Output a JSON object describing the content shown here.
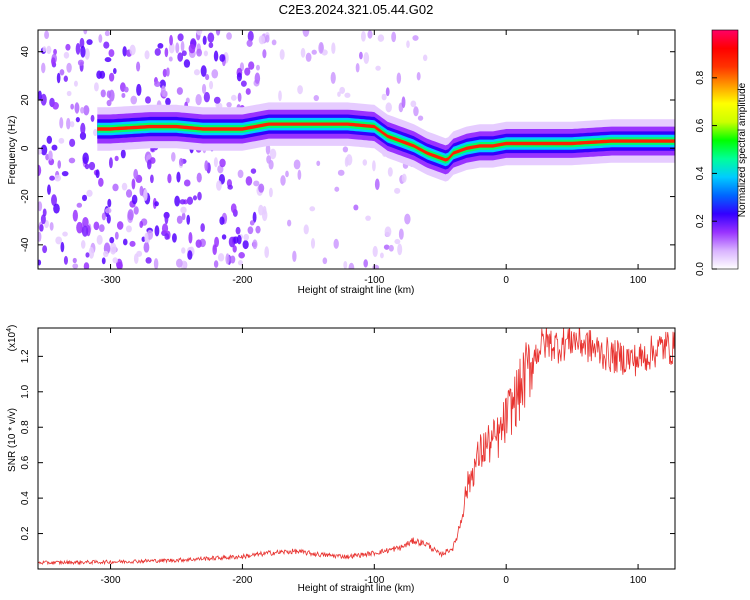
{
  "title": "C2E3.2024.321.05.44.G02",
  "colors": {
    "line": "#e8322f",
    "axis": "#000000",
    "background": "#ffffff",
    "colorbar_stops": [
      "#ffffff",
      "#d9b3ff",
      "#9933ff",
      "#3300ff",
      "#0066ff",
      "#00ccff",
      "#00ff99",
      "#00ff00",
      "#ccff00",
      "#ffff00",
      "#ff9900",
      "#ff3300",
      "#ff0000",
      "#ff0066"
    ]
  },
  "chart_data": [
    {
      "type": "heatmap",
      "xlabel": "Height of straight line (km)",
      "ylabel": "Frequency (Hz)",
      "xlim": [
        -355,
        128
      ],
      "ylim": [
        -50,
        49
      ],
      "x_ticks": [
        -300,
        -200,
        -100,
        0,
        100
      ],
      "y_ticks": [
        -40,
        -20,
        0,
        20,
        40
      ],
      "ridge": {
        "x": [
          -300,
          -270,
          -250,
          -230,
          -200,
          -180,
          -150,
          -120,
          -100,
          -90,
          -80,
          -70,
          -60,
          -50,
          -45,
          -40,
          -30,
          -20,
          -10,
          0,
          20,
          50,
          80,
          100,
          128
        ],
        "y": [
          8,
          9,
          9,
          8,
          8,
          10,
          10,
          10,
          9,
          5,
          3,
          1,
          -2,
          -4,
          -5,
          -2,
          0,
          1,
          1,
          2,
          2,
          2,
          3,
          3,
          3
        ]
      },
      "colorbar": {
        "label": "Normalized spectral amplitude",
        "range": [
          0,
          1
        ],
        "ticks": [
          "0.0",
          "0.2",
          "0.4",
          "0.6",
          "0.8"
        ]
      }
    },
    {
      "type": "line",
      "xlabel": "Height of straight line (km)",
      "ylabel": "SNR (10 * v/v)",
      "multiplier_base": "(x10",
      "multiplier_exp": "4",
      "multiplier_close": ")",
      "xlim": [
        -355,
        128
      ],
      "ylim": [
        0,
        13600
      ],
      "x_ticks": [
        -300,
        -200,
        -100,
        0,
        100
      ],
      "y_tick_values": [
        2000,
        4000,
        6000,
        8000,
        10000,
        12000
      ],
      "y_tick_labels": [
        "0.2",
        "0.4",
        "0.6",
        "0.8",
        "1.0",
        "1.2"
      ],
      "series": [
        {
          "x": [
            -355,
            -300,
            -250,
            -200,
            -180,
            -160,
            -150,
            -140,
            -120,
            -100,
            -80,
            -70,
            -60,
            -50,
            -40,
            -35,
            -30,
            -25,
            -20,
            -15,
            -10,
            -5,
            0,
            5,
            10,
            15,
            20,
            25,
            30,
            40,
            50,
            60,
            70,
            80,
            90,
            100,
            110,
            120,
            128
          ],
          "values": [
            350,
            400,
            500,
            700,
            900,
            1000,
            900,
            800,
            700,
            900,
            1200,
            1600,
            1400,
            800,
            1200,
            2500,
            4500,
            5600,
            6500,
            7000,
            7200,
            7500,
            8500,
            9300,
            10000,
            11000,
            11800,
            12500,
            12800,
            12600,
            13000,
            12700,
            12300,
            12000,
            11900,
            11800,
            12200,
            12600,
            12400
          ]
        }
      ]
    }
  ]
}
